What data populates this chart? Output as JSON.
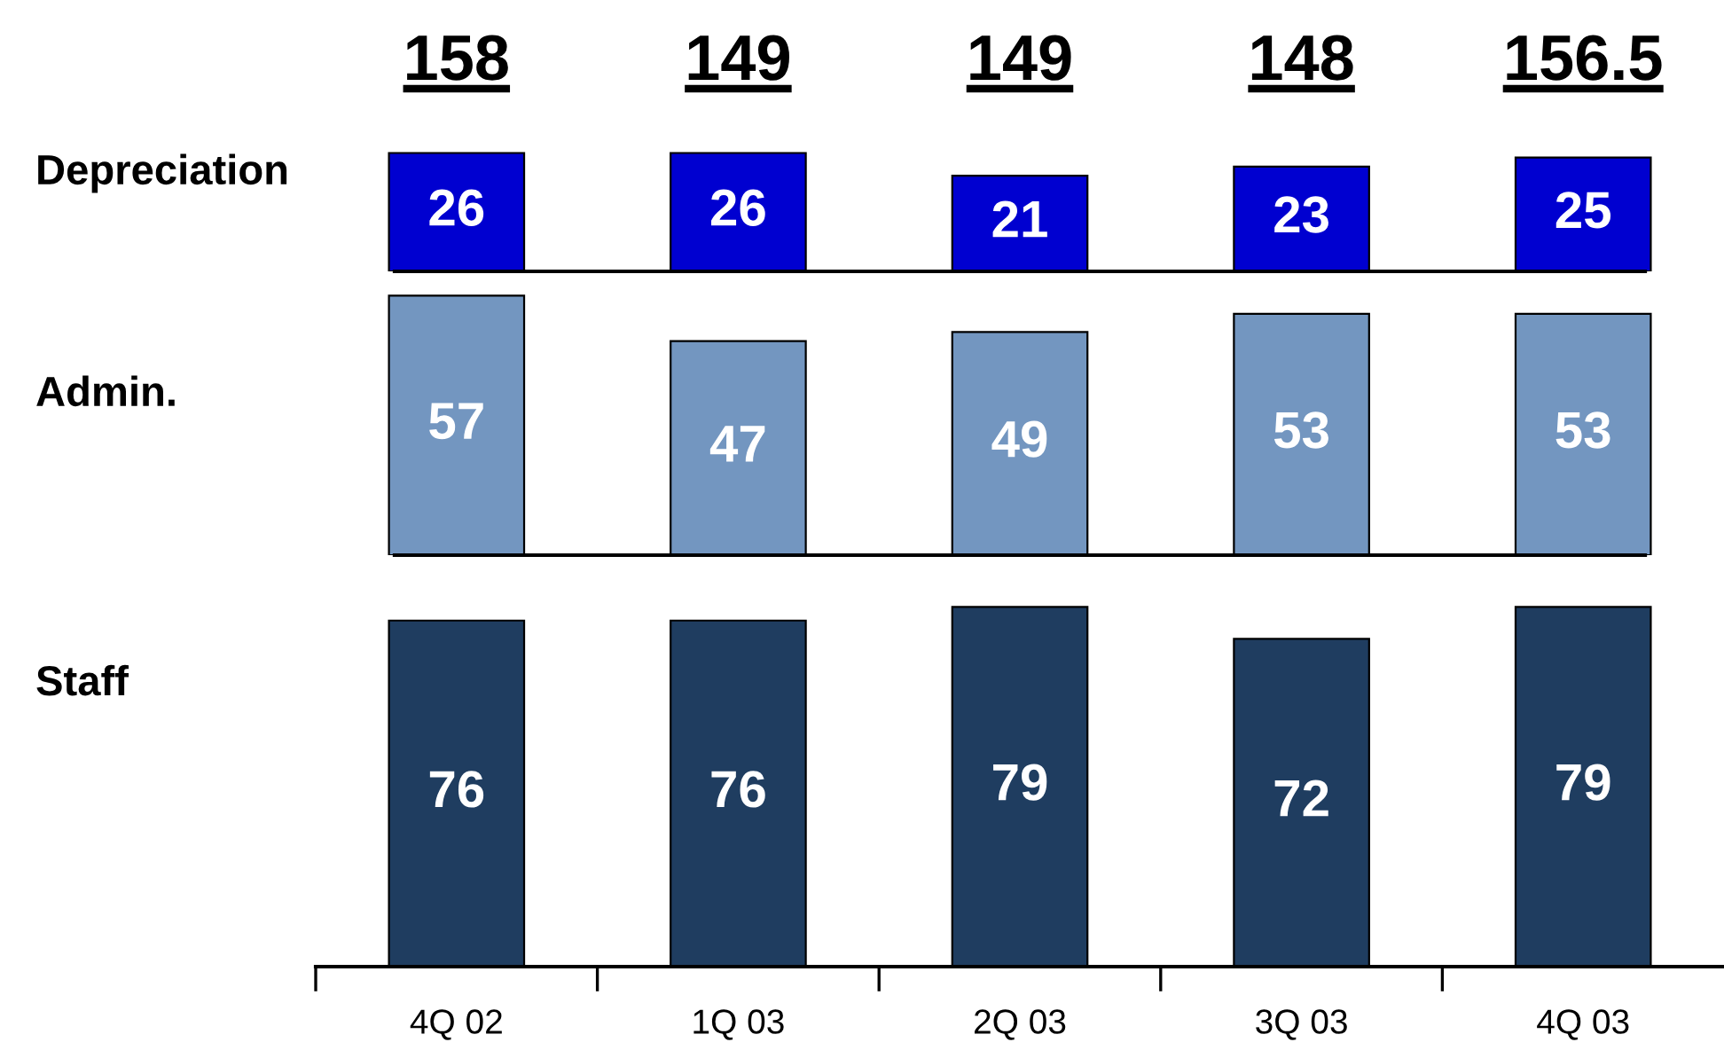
{
  "chart_data": [
    {
      "type": "bar",
      "categories": [
        null,
        null,
        null,
        null,
        null
      ],
      "values": [
        26,
        26,
        21,
        23,
        25
      ],
      "color": "#0000d0",
      "ylabel": "Depreciation",
      "data_labels": true,
      "annotations": [
        "158",
        "149",
        "149",
        "148",
        "156.5"
      ],
      "tick_labels": false
    },
    {
      "type": "bar",
      "categories": [
        null,
        null,
        null,
        null,
        null
      ],
      "values": [
        57,
        47,
        49,
        53,
        53
      ],
      "color": "#7396c0",
      "ylabel": "Admin.",
      "data_labels": true,
      "tick_labels": false
    },
    {
      "type": "bar",
      "categories": [
        "4Q 02",
        "1Q 03",
        "2Q 03",
        "3Q 03",
        "4Q 03"
      ],
      "values": [
        76,
        76,
        79,
        72,
        79
      ],
      "color": "#1f3d60",
      "ylabel": "Staff",
      "data_labels": true,
      "tick_labels": "x"
    }
  ]
}
